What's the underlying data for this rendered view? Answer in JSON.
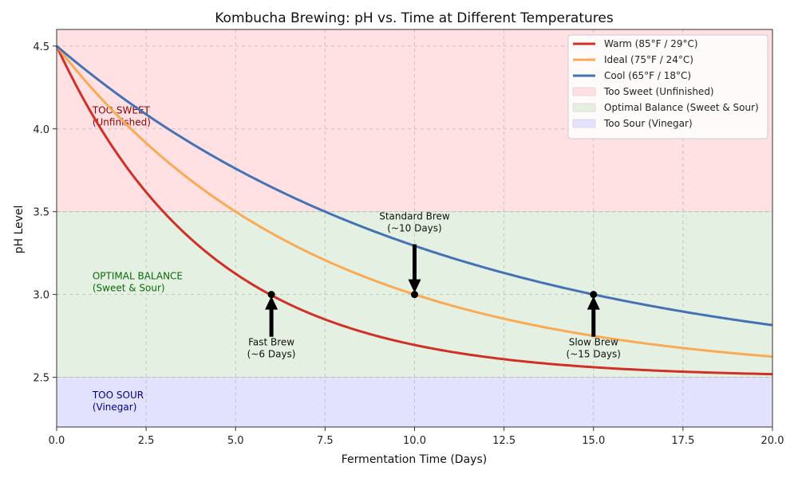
{
  "chart_data": {
    "type": "line",
    "title": "Kombucha Brewing: pH vs. Time at Different Temperatures",
    "xlabel": "Fermentation Time (Days)",
    "ylabel": "pH Level",
    "xlim": [
      0,
      20
    ],
    "ylim": [
      2.2,
      4.6
    ],
    "x_ticks": [
      "0.0",
      "2.5",
      "5.0",
      "7.5",
      "10.0",
      "12.5",
      "15.0",
      "17.5",
      "20.0"
    ],
    "y_ticks": [
      "2.5",
      "3.0",
      "3.5",
      "4.0",
      "4.5"
    ],
    "grid": true,
    "legend_position": "top-right",
    "series": [
      {
        "name": "Warm (85°F / 29°C)",
        "color": "#d03027",
        "model": {
          "start": 4.5,
          "asymptote": 2.5,
          "rate": 0.2326
        },
        "x": [
          0,
          1,
          2,
          3,
          4,
          5,
          6,
          7,
          8,
          9,
          10,
          12,
          14,
          16,
          18,
          20
        ],
        "y": [
          4.5,
          4.09,
          3.76,
          3.49,
          3.28,
          3.12,
          3.0,
          2.9,
          2.83,
          2.76,
          2.7,
          2.63,
          2.58,
          2.55,
          2.53,
          2.52
        ]
      },
      {
        "name": "Ideal (75°F / 24°C)",
        "color": "#f9aa55",
        "model": {
          "start": 4.5,
          "asymptote": 2.5,
          "rate": 0.1386
        },
        "x": [
          0,
          1,
          2,
          3,
          4,
          5,
          6,
          7,
          8,
          9,
          10,
          12,
          14,
          16,
          18,
          20
        ],
        "y": [
          4.5,
          4.24,
          4.02,
          3.82,
          3.65,
          3.5,
          3.37,
          3.26,
          3.16,
          3.07,
          3.0,
          2.88,
          2.79,
          2.72,
          2.66,
          2.62
        ]
      },
      {
        "name": "Cool (65°F / 18°C)",
        "color": "#4472b4",
        "model": {
          "start": 4.5,
          "asymptote": 2.5,
          "rate": 0.0924
        },
        "x": [
          0,
          1,
          2,
          3,
          4,
          5,
          6,
          7,
          8,
          9,
          10,
          12,
          14,
          16,
          18,
          20
        ],
        "y": [
          4.5,
          4.32,
          4.16,
          4.01,
          3.88,
          3.76,
          3.65,
          3.55,
          3.46,
          3.37,
          3.3,
          3.15,
          3.05,
          2.96,
          2.88,
          2.81
        ]
      }
    ],
    "zones": [
      {
        "name": "Too Sweet (Unfinished)",
        "ymin": 3.5,
        "ymax": 4.6,
        "color": "#ffe0e3",
        "label_line1": "TOO SWEET",
        "label_line2": "(Unfinished)",
        "label_color": "#8b0000"
      },
      {
        "name": "Optimal Balance (Sweet & Sour)",
        "ymin": 2.5,
        "ymax": 3.5,
        "color": "#e4f0e1",
        "label_line1": "OPTIMAL BALANCE",
        "label_line2": "(Sweet & Sour)",
        "label_color": "#0a6b0a"
      },
      {
        "name": "Too Sour (Vinegar)",
        "ymin": 2.2,
        "ymax": 2.5,
        "color": "#e2e2fe",
        "label_line1": "TOO SOUR",
        "label_line2": "(Vinegar)",
        "label_color": "#00008b"
      }
    ],
    "zone_label_x": 1.0,
    "zone_label_y": [
      4.02,
      3.02,
      2.3
    ],
    "annotations": [
      {
        "x": 6,
        "y": 3.0,
        "text_line1": "Fast Brew",
        "text_line2": "(~6 Days)",
        "text_y": 2.62,
        "arrow": "up"
      },
      {
        "x": 10,
        "y": 3.0,
        "text_line1": "Standard Brew",
        "text_line2": "(~10 Days)",
        "text_y": 3.38,
        "arrow": "down"
      },
      {
        "x": 15,
        "y": 3.0,
        "text_line1": "Slow Brew",
        "text_line2": "(~15 Days)",
        "text_y": 2.62,
        "arrow": "up"
      }
    ]
  }
}
